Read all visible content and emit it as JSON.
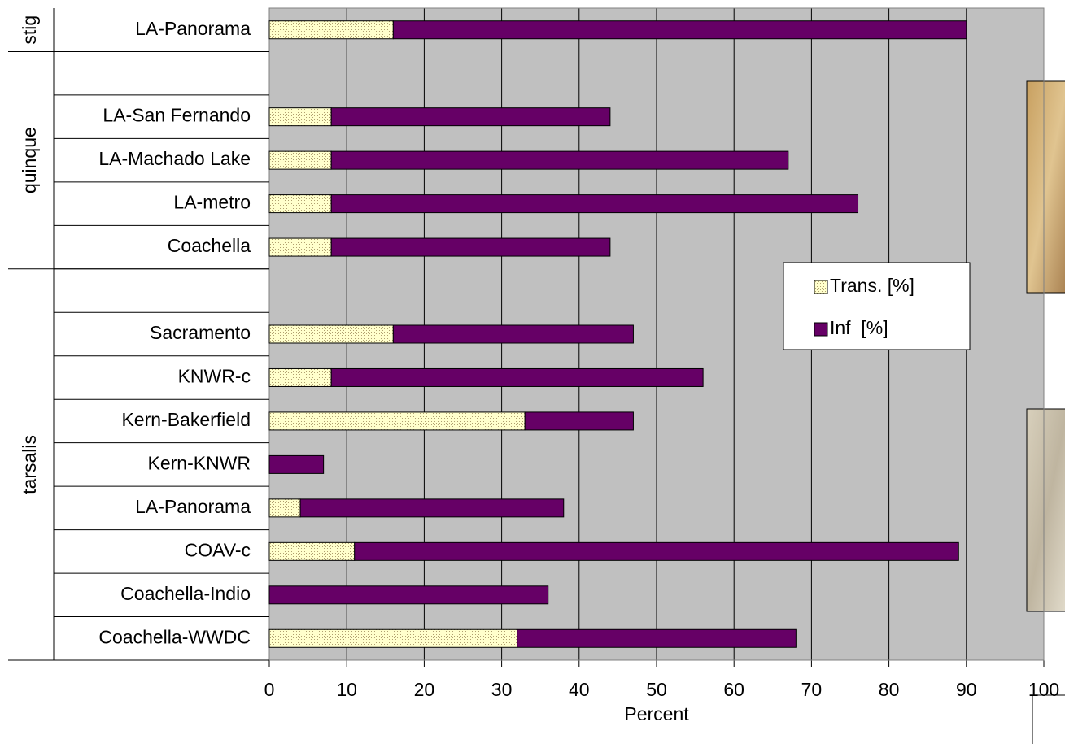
{
  "chart_data": {
    "type": "stacked-barh",
    "x_label": "Percent",
    "categories": [
      "LA-Panorama",
      null,
      "LA-San Fernando",
      "LA-Machado Lake",
      "LA-metro",
      "Coachella",
      null,
      "Sacramento",
      "KNWR-c",
      "Kern-Bakerfield",
      "Kern-KNWR",
      "LA-Panorama",
      "COAV-c",
      "Coachella-Indio",
      "Coachella-WWDC"
    ],
    "groups": [
      {
        "label": "stig",
        "count": 1
      },
      {
        "label": "quinque",
        "count": 5
      },
      {
        "label": "tarsalis",
        "count": 9
      }
    ],
    "series": [
      {
        "name": "Trans. [%]",
        "color": "#ffffcc",
        "values": [
          16,
          null,
          8,
          8,
          8,
          8,
          null,
          16,
          8,
          33,
          0,
          4,
          11,
          0,
          32
        ]
      },
      {
        "name": "Inf  [%]",
        "color": "#660066",
        "values": [
          74,
          null,
          36,
          59,
          68,
          36,
          null,
          31,
          48,
          14,
          7,
          34,
          78,
          36,
          36
        ]
      }
    ],
    "xlim": [
      0,
      100
    ],
    "xticks": [
      0,
      10,
      20,
      30,
      40,
      50,
      60,
      70,
      80,
      90,
      100
    ],
    "grid": true
  }
}
